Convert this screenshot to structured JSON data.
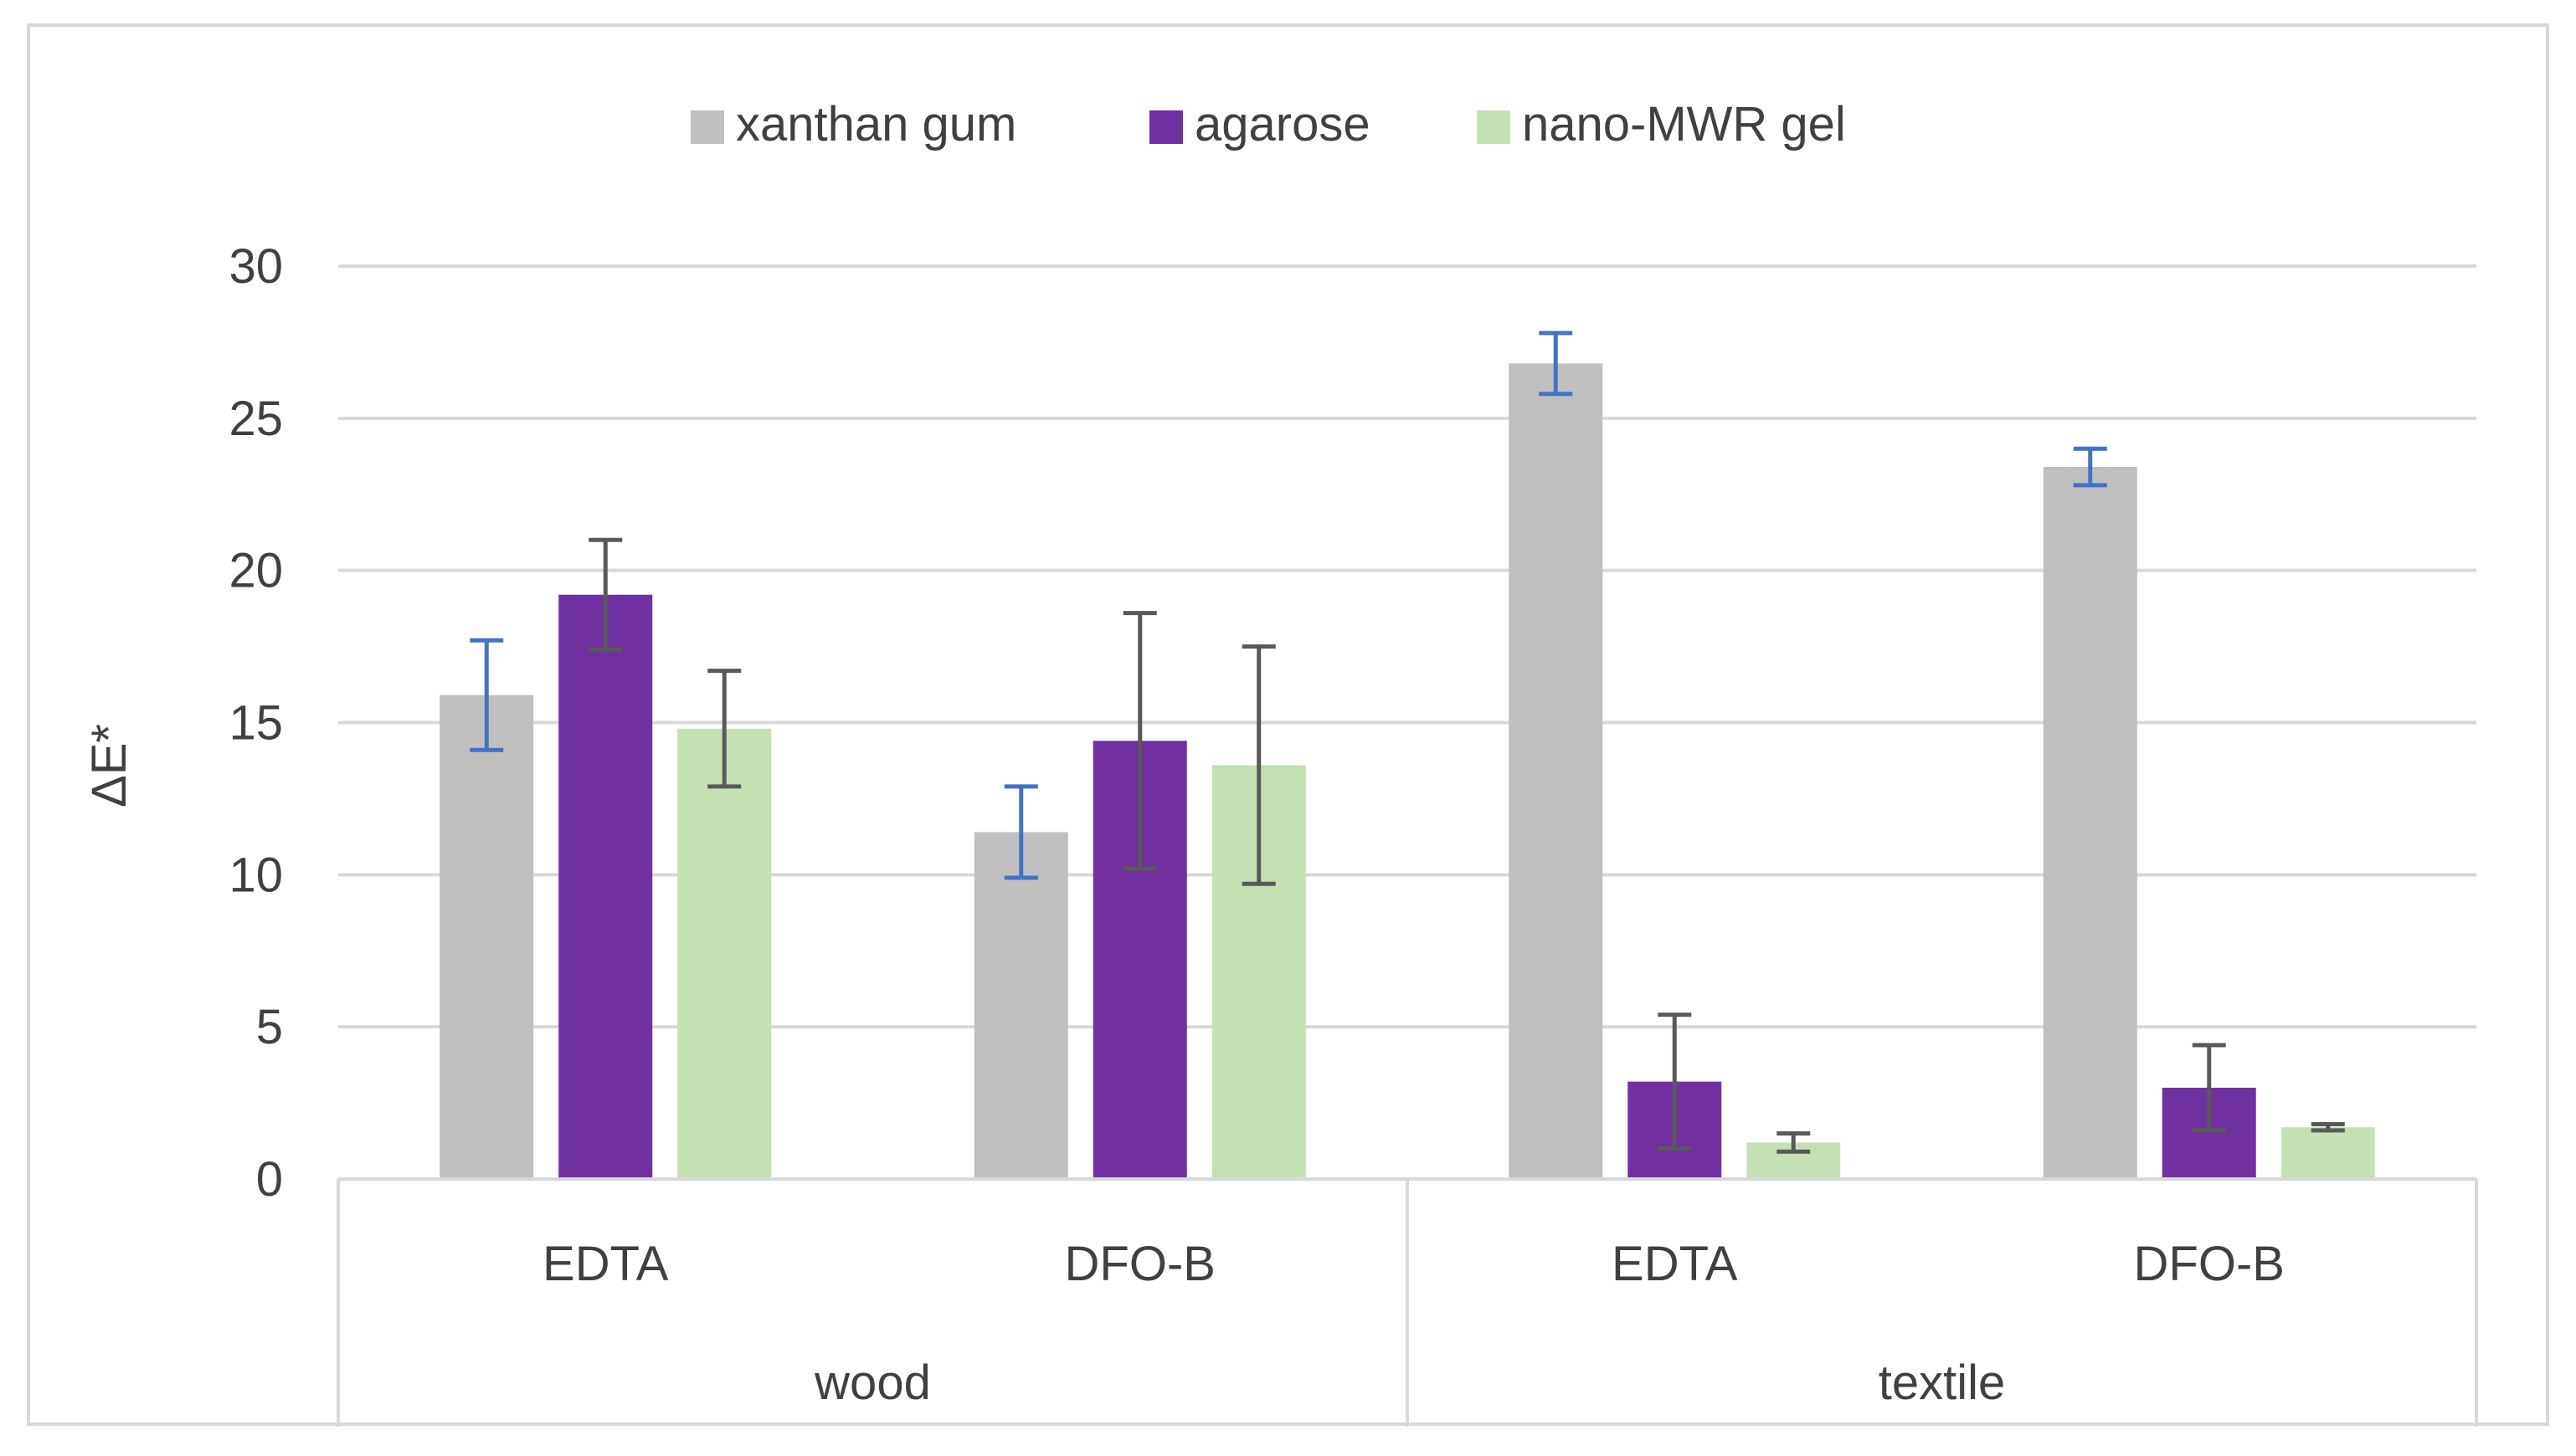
{
  "chart_data": {
    "type": "bar",
    "title": "",
    "xlabel": "",
    "ylabel": "ΔE*",
    "ylim": [
      0,
      30
    ],
    "yticks": [
      0,
      5,
      10,
      15,
      20,
      25,
      30
    ],
    "grid": true,
    "legend_position": "top",
    "groups": [
      {
        "label": "wood",
        "categories": [
          "EDTA",
          "DFO-B"
        ]
      },
      {
        "label": "textile",
        "categories": [
          "EDTA",
          "DFO-B"
        ]
      }
    ],
    "series": [
      {
        "name": "xanthan gum",
        "color": "#bfbfbf",
        "error_color": "#4472c4",
        "values": [
          15.9,
          11.4,
          26.8,
          23.4
        ],
        "errors": [
          1.8,
          1.5,
          1.0,
          0.6
        ]
      },
      {
        "name": "agarose",
        "color": "#7030a0",
        "error_color": "#595959",
        "values": [
          19.2,
          14.4,
          3.2,
          3.0
        ],
        "errors": [
          1.8,
          4.2,
          2.2,
          1.4
        ]
      },
      {
        "name": "nano-MWR gel",
        "color": "#c5e0b4",
        "error_color": "#595959",
        "values": [
          14.8,
          13.6,
          1.2,
          1.7
        ],
        "errors": [
          1.9,
          3.9,
          0.3,
          0.1
        ]
      }
    ]
  }
}
